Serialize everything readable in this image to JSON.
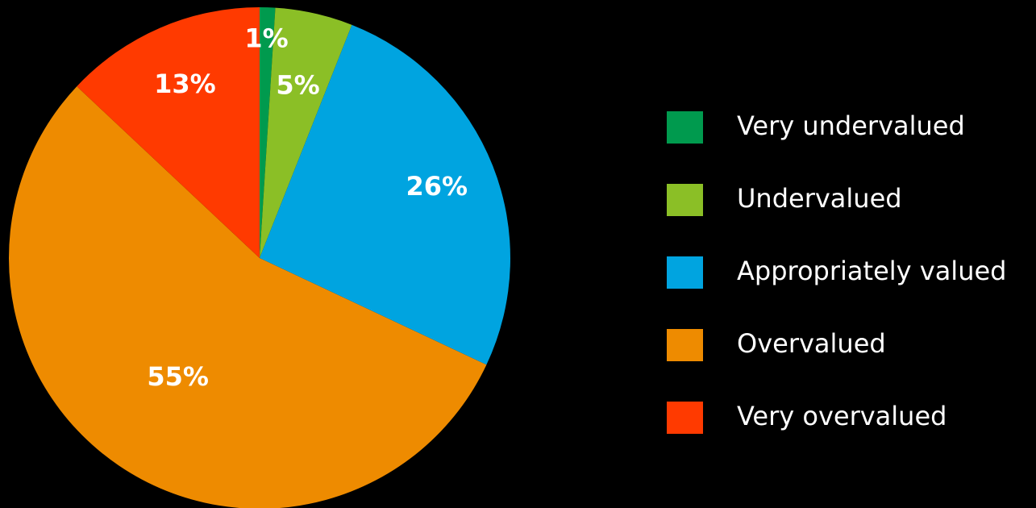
{
  "chart_data": {
    "type": "pie",
    "categories": [
      "Very undervalued",
      "Undervalued",
      "Appropriately valued",
      "Overvalued",
      "Very overvalued"
    ],
    "values": [
      1,
      5,
      26,
      55,
      13
    ],
    "value_labels": [
      "1%",
      "5%",
      "26%",
      "55%",
      "13%"
    ],
    "colors": [
      "#009a4e",
      "#8bbf26",
      "#00a4e0",
      "#ee8b00",
      "#ff3a00"
    ],
    "legend": "right"
  }
}
